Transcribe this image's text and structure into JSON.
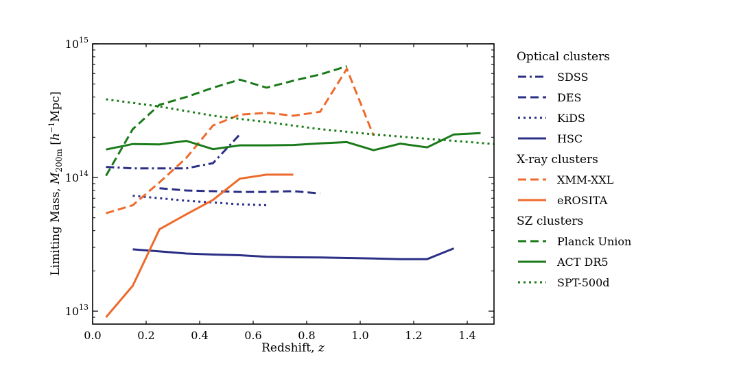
{
  "chart_data": {
    "type": "line",
    "xlabel": "Redshift, z",
    "ylabel": "Limiting Mass, M200m [h⁻¹Mpc]",
    "xlim": [
      0.0,
      1.5
    ],
    "ylim": [
      8000000000000.0,
      1000000000000000.0
    ],
    "yscale": "log",
    "x_ticks": [
      "0.0",
      "0.2",
      "0.4",
      "0.6",
      "0.8",
      "1.0",
      "1.2",
      "1.4"
    ],
    "y_ticks": [
      {
        "base": "10",
        "exp": "13"
      },
      {
        "base": "10",
        "exp": "14"
      },
      {
        "base": "10",
        "exp": "15"
      }
    ],
    "grid": false,
    "legend_placement": "right, outside plot",
    "legend_groups": [
      {
        "title": "Optical clusters",
        "entries": [
          "SDSS",
          "DES",
          "KiDS",
          "HSC"
        ]
      },
      {
        "title": "X-ray clusters",
        "entries": [
          "XMM-XXL",
          "eROSITA"
        ]
      },
      {
        "title": "SZ clusters",
        "entries": [
          "Planck Union",
          "ACT DR5",
          "SPT-500d"
        ]
      }
    ],
    "series": [
      {
        "name": "SDSS",
        "color": "#2b2f86",
        "style": "dashdot",
        "x": [
          0.05,
          0.15,
          0.25,
          0.35,
          0.45,
          0.55
        ],
        "y": [
          120000000000000.0,
          117000000000000.0,
          117000000000000.0,
          117000000000000.0,
          128000000000000.0,
          210000000000000.0
        ]
      },
      {
        "name": "DES",
        "color": "#2b2f86",
        "style": "dashed",
        "x": [
          0.25,
          0.35,
          0.45,
          0.55,
          0.65,
          0.75,
          0.85
        ],
        "y": [
          83000000000000.0,
          80000000000000.0,
          79000000000000.0,
          78000000000000.0,
          78000000000000.0,
          79000000000000.0,
          76000000000000.0
        ]
      },
      {
        "name": "KiDS",
        "color": "#2b2f86",
        "style": "dotted",
        "x": [
          0.15,
          0.25,
          0.35,
          0.45,
          0.55,
          0.65
        ],
        "y": [
          73000000000000.0,
          70000000000000.0,
          67000000000000.0,
          65000000000000.0,
          63000000000000.0,
          62000000000000.0
        ]
      },
      {
        "name": "HSC",
        "color": "#2b2f86",
        "style": "solid",
        "x": [
          0.15,
          0.25,
          0.35,
          0.45,
          0.55,
          0.65,
          0.75,
          0.85,
          0.95,
          1.05,
          1.15,
          1.25,
          1.35
        ],
        "y": [
          29000000000000.0,
          28000000000000.0,
          27000000000000.0,
          26500000000000.0,
          26200000000000.0,
          25500000000000.0,
          25300000000000.0,
          25200000000000.0,
          25000000000000.0,
          24800000000000.0,
          24500000000000.0,
          24500000000000.0,
          29500000000000.0
        ]
      },
      {
        "name": "XMM-XXL",
        "color": "#ee6a2c",
        "style": "dashed",
        "x": [
          0.05,
          0.15,
          0.25,
          0.35,
          0.45,
          0.55,
          0.65,
          0.75,
          0.85,
          0.95,
          1.05
        ],
        "y": [
          54000000000000.0,
          62000000000000.0,
          92000000000000.0,
          140000000000000.0,
          245000000000000.0,
          295000000000000.0,
          305000000000000.0,
          290000000000000.0,
          310000000000000.0,
          650000000000000.0,
          205000000000000.0
        ]
      },
      {
        "name": "eROSITA",
        "color": "#ee6a2c",
        "style": "solid",
        "x": [
          0.05,
          0.15,
          0.25,
          0.35,
          0.45,
          0.55,
          0.65,
          0.75
        ],
        "y": [
          9000000000000.0,
          15500000000000.0,
          41000000000000.0,
          53000000000000.0,
          68000000000000.0,
          98000000000000.0,
          105000000000000.0,
          105000000000000.0
        ]
      },
      {
        "name": "Planck Union",
        "color": "#1a7a1a",
        "style": "dashed",
        "x": [
          0.05,
          0.15,
          0.25,
          0.35,
          0.45,
          0.55,
          0.65,
          0.75,
          0.85,
          0.95
        ],
        "y": [
          103000000000000.0,
          230000000000000.0,
          350000000000000.0,
          400000000000000.0,
          470000000000000.0,
          540000000000000.0,
          470000000000000.0,
          530000000000000.0,
          590000000000000.0,
          680000000000000.0
        ]
      },
      {
        "name": "ACT DR5",
        "color": "#1a7a1a",
        "style": "solid",
        "x": [
          0.05,
          0.15,
          0.25,
          0.35,
          0.45,
          0.55,
          0.65,
          0.75,
          0.85,
          0.95,
          1.05,
          1.15,
          1.25,
          1.35,
          1.45
        ],
        "y": [
          162000000000000.0,
          178000000000000.0,
          177000000000000.0,
          188000000000000.0,
          163000000000000.0,
          174000000000000.0,
          174000000000000.0,
          175000000000000.0,
          180000000000000.0,
          184000000000000.0,
          160000000000000.0,
          179000000000000.0,
          168000000000000.0,
          210000000000000.0,
          215000000000000.0
        ]
      },
      {
        "name": "SPT-500d",
        "color": "#1a7a1a",
        "style": "dotted",
        "x": [
          0.05,
          0.25,
          0.45,
          0.65,
          0.85,
          1.05,
          1.25,
          1.5
        ],
        "y": [
          385000000000000.0,
          340000000000000.0,
          290000000000000.0,
          260000000000000.0,
          230000000000000.0,
          210000000000000.0,
          195000000000000.0,
          178000000000000.0
        ]
      }
    ]
  }
}
